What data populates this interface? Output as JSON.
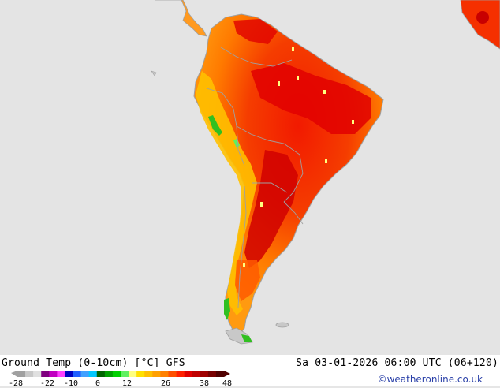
{
  "title": "Ground Temp (0-10cm) [°C] GFS",
  "datetime": "Sa 03-01-2026 06:00 UTC (06+120)",
  "credit": "©weatheronline.co.uk",
  "legend": {
    "ticks": [
      "-28",
      "-22",
      "-10",
      "0",
      "12",
      "26",
      "38",
      "48"
    ],
    "colors": [
      "#a0a0a0",
      "#c8c8c8",
      "#e0e0e0",
      "#800080",
      "#c000c0",
      "#ff40ff",
      "#0000c0",
      "#2060ff",
      "#40a0ff",
      "#00c8ff",
      "#006400",
      "#00a000",
      "#00d000",
      "#60f060",
      "#ffff80",
      "#ffe000",
      "#ffc000",
      "#ffa000",
      "#ff8000",
      "#ff5000",
      "#ff2000",
      "#e00000",
      "#c00000",
      "#a00000",
      "#780000",
      "#500000"
    ]
  },
  "map": {
    "background_color": "#e4e4e4",
    "border_color": "#a0a0a0"
  }
}
